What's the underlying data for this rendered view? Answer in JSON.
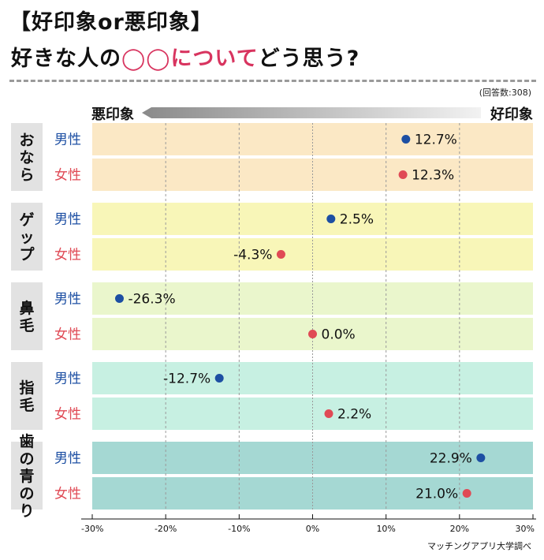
{
  "title_line1": "【好印象or悪印象】",
  "title_line2_prefix": "好きな人の",
  "title_line2_blank": "◯◯",
  "title_line2_highlight": "について",
  "title_line2_suffix": "どう思う?",
  "respondents": "(回答数:308)",
  "scale_negative_label": "悪印象",
  "scale_positive_label": "好印象",
  "source": "マッチングアプリ大学調べ",
  "colors": {
    "male": "#1d4fa3",
    "female": "#e04a55",
    "label_bg": "#e2e2e2",
    "title_highlight": "#d8345f"
  },
  "chart_data": {
    "type": "dot",
    "title": "好きな人の◯◯についてどう思う?",
    "xlabel": "",
    "ylabel": "",
    "xlim": [
      -30,
      30
    ],
    "x_ticks": [
      "-30%",
      "-20%",
      "-10%",
      "0%",
      "10%",
      "20%",
      "30%"
    ],
    "series_labels": [
      "男性",
      "女性"
    ],
    "categories": [
      {
        "label": "おなら",
        "bg": "#fbe8c5",
        "values": [
          12.7,
          12.3
        ],
        "value_labels": [
          "12.7%",
          "12.3%"
        ]
      },
      {
        "label": "ゲップ",
        "bg": "#f8f6b8",
        "values": [
          2.5,
          -4.3
        ],
        "value_labels": [
          "2.5%",
          "-4.3%"
        ]
      },
      {
        "label": "鼻毛",
        "bg": "#eaf6cc",
        "values": [
          -26.3,
          0.0
        ],
        "value_labels": [
          "-26.3%",
          "0.0%"
        ]
      },
      {
        "label": "指毛",
        "bg": "#c7f0e2",
        "values": [
          -12.7,
          2.2
        ],
        "value_labels": [
          "-12.7%",
          "2.2%"
        ]
      },
      {
        "label": "歯の青のり",
        "bg": "#a5d8d3",
        "values": [
          22.9,
          21.0
        ],
        "value_labels": [
          "22.9%",
          "21.0%"
        ]
      }
    ]
  }
}
